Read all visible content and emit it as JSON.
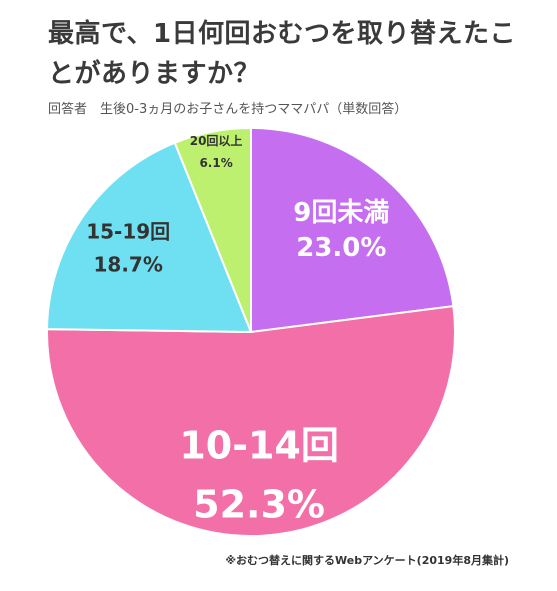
{
  "title": "最高で、1日何回おむつを取り替えたことがありますか？",
  "subtitle": "回答者　生後0-3ヵ月のお子さんを持つママパパ（単数回答）",
  "footnote": "※おむつ替えに関するWebアンケート(2019年8月集計)",
  "chart_data": {
    "type": "pie",
    "title": "最高で、1日何回おむつを取り替えたことがありますか？",
    "start": "12 o'clock",
    "direction": "clockwise",
    "slices": [
      {
        "label": "9回未満",
        "value": 23.0,
        "value_label": "23.0%",
        "color": "#c56ef0",
        "text_color": "#ffffff"
      },
      {
        "label": "10-14回",
        "value": 52.3,
        "value_label": "52.3%",
        "color": "#f270a7",
        "text_color": "#ffffff"
      },
      {
        "label": "15-19回",
        "value": 18.7,
        "value_label": "18.7%",
        "color": "#6fe0f1",
        "text_color": "#333333"
      },
      {
        "label": "20回以上",
        "value": 6.1,
        "value_label": "6.1%",
        "color": "#bdf06f",
        "text_color": "#333333"
      }
    ]
  }
}
